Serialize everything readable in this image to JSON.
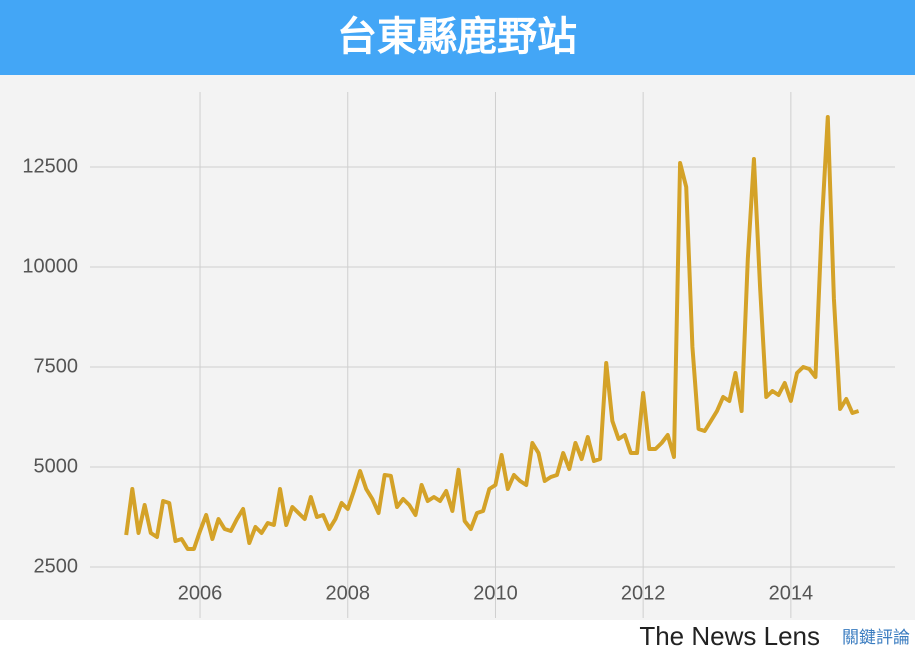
{
  "chart_data": {
    "type": "line",
    "title": "台東縣鹿野站",
    "x": [
      2005,
      2005.083,
      2005.167,
      2005.25,
      2005.333,
      2005.417,
      2005.5,
      2005.583,
      2005.667,
      2005.75,
      2005.833,
      2005.917,
      2006,
      2006.083,
      2006.167,
      2006.25,
      2006.333,
      2006.417,
      2006.5,
      2006.583,
      2006.667,
      2006.75,
      2006.833,
      2006.917,
      2007,
      2007.083,
      2007.167,
      2007.25,
      2007.333,
      2007.417,
      2007.5,
      2007.583,
      2007.667,
      2007.75,
      2007.833,
      2007.917,
      2008,
      2008.083,
      2008.167,
      2008.25,
      2008.333,
      2008.417,
      2008.5,
      2008.583,
      2008.667,
      2008.75,
      2008.833,
      2008.917,
      2009,
      2009.083,
      2009.167,
      2009.25,
      2009.333,
      2009.417,
      2009.5,
      2009.583,
      2009.667,
      2009.75,
      2009.833,
      2009.917,
      2010,
      2010.083,
      2010.167,
      2010.25,
      2010.333,
      2010.417,
      2010.5,
      2010.583,
      2010.667,
      2010.75,
      2010.833,
      2010.917,
      2011,
      2011.083,
      2011.167,
      2011.25,
      2011.333,
      2011.417,
      2011.5,
      2011.583,
      2011.667,
      2011.75,
      2011.833,
      2011.917,
      2012,
      2012.083,
      2012.167,
      2012.25,
      2012.333,
      2012.417,
      2012.5,
      2012.583,
      2012.667,
      2012.75,
      2012.833,
      2012.917,
      2013,
      2013.083,
      2013.167,
      2013.25,
      2013.333,
      2013.417,
      2013.5,
      2013.583,
      2013.667,
      2013.75,
      2013.833,
      2013.917,
      2014,
      2014.083,
      2014.167,
      2014.25,
      2014.333,
      2014.417,
      2014.5,
      2014.583,
      2014.667,
      2014.75,
      2014.833,
      2014.917
    ],
    "values": [
      3300,
      4450,
      3350,
      4050,
      3350,
      3250,
      4150,
      4100,
      3150,
      3200,
      2950,
      2950,
      3400,
      3800,
      3200,
      3700,
      3450,
      3400,
      3700,
      3950,
      3100,
      3500,
      3350,
      3600,
      3550,
      4450,
      3550,
      4000,
      3850,
      3700,
      4250,
      3750,
      3800,
      3450,
      3700,
      4100,
      3950,
      4400,
      4900,
      4450,
      4200,
      3850,
      4800,
      4780,
      4000,
      4200,
      4050,
      3800,
      4550,
      4150,
      4250,
      4150,
      4400,
      3900,
      4930,
      3650,
      3450,
      3850,
      3900,
      4450,
      4550,
      5300,
      4450,
      4800,
      4650,
      4550,
      5600,
      5350,
      4650,
      4750,
      4800,
      5350,
      4950,
      5600,
      5200,
      5750,
      5150,
      5200,
      7600,
      6150,
      5700,
      5800,
      5350,
      5350,
      6850,
      5450,
      5450,
      5600,
      5800,
      5250,
      12600,
      12000,
      8000,
      5950,
      5900,
      6150,
      6400,
      6750,
      6650,
      7350,
      6400,
      10200,
      12700,
      9500,
      6750,
      6900,
      6800,
      7100,
      6650,
      7350,
      7500,
      7450,
      7250,
      11000,
      13750,
      9200,
      6450,
      6700,
      6350,
      6400
    ],
    "color": "#d4a228",
    "xlim": [
      2004.51,
      2015.41
    ],
    "xticks": [
      2006,
      2008,
      2010,
      2012,
      2014
    ],
    "ylim": [
      1225,
      14375
    ],
    "yticks": [
      2500,
      5000,
      7500,
      10000,
      12500
    ],
    "grid": true
  },
  "footer": {
    "brand": "The News Lens",
    "brand_zh": "關鍵評論"
  }
}
